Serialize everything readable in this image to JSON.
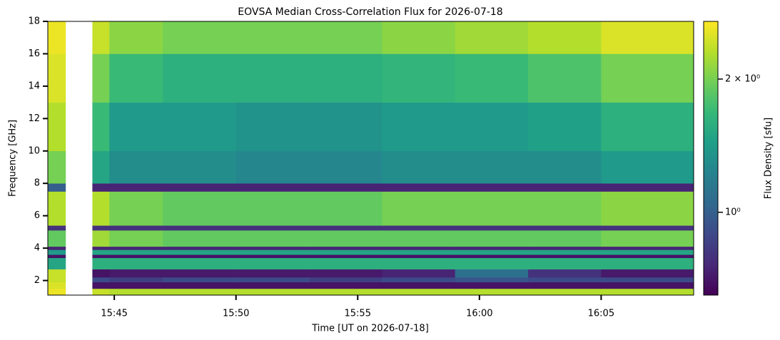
{
  "chart_data": {
    "type": "heatmap",
    "title": "EOVSA Median Cross-Correlation Flux for 2026-07-18",
    "x_label": "Time [UT on 2026-07-18]",
    "y_label": "Frequency [GHz]",
    "colorbar_label": "Flux Density [sfu]",
    "colormap": "viridis",
    "x": [
      942.27,
      943.0,
      944.1,
      944.8,
      947,
      950,
      953,
      956,
      959,
      962,
      965,
      968.8
    ],
    "y": [
      1.1,
      1.5,
      1.9,
      2.2,
      2.7,
      3.4,
      3.6,
      3.9,
      4.1,
      5.1,
      5.4,
      7.5,
      8.0,
      10.0,
      13.0,
      16.0,
      18.0
    ],
    "z": [
      [
        2.6,
        null,
        2.4,
        2.3,
        2.3,
        2.3,
        2.3,
        2.3,
        2.3,
        2.3,
        2.3
      ],
      [
        2.5,
        null,
        0.7,
        0.7,
        0.7,
        0.7,
        0.7,
        0.7,
        0.7,
        0.7,
        0.7
      ],
      [
        2.4,
        null,
        0.9,
        0.85,
        0.9,
        0.9,
        0.85,
        0.9,
        0.95,
        0.9,
        0.9
      ],
      [
        2.4,
        null,
        0.7,
        0.72,
        0.72,
        0.72,
        0.72,
        0.75,
        1.1,
        0.8,
        0.72
      ],
      [
        1.5,
        null,
        1.6,
        1.6,
        1.6,
        1.6,
        1.6,
        1.6,
        1.6,
        1.6,
        1.6
      ],
      [
        0.7,
        null,
        0.7,
        0.7,
        0.7,
        0.7,
        0.7,
        0.7,
        0.7,
        0.7,
        0.7
      ],
      [
        1.4,
        null,
        1.5,
        1.5,
        1.5,
        1.5,
        1.5,
        1.5,
        1.5,
        1.5,
        1.5
      ],
      [
        0.75,
        null,
        0.75,
        0.75,
        0.75,
        0.75,
        0.75,
        0.75,
        0.75,
        0.75,
        0.75
      ],
      [
        1.9,
        null,
        2.2,
        2.0,
        1.9,
        1.9,
        1.9,
        1.9,
        1.9,
        1.9,
        2.0
      ],
      [
        0.8,
        null,
        0.8,
        0.8,
        0.8,
        0.8,
        0.8,
        0.8,
        0.8,
        0.8,
        0.8
      ],
      [
        2.3,
        null,
        2.3,
        2.0,
        1.9,
        1.9,
        1.9,
        2.0,
        2.0,
        2.0,
        2.1
      ],
      [
        1.0,
        null,
        0.75,
        0.75,
        0.75,
        0.75,
        0.75,
        0.75,
        0.75,
        0.75,
        0.75
      ],
      [
        2.0,
        null,
        1.5,
        1.3,
        1.3,
        1.25,
        1.25,
        1.3,
        1.3,
        1.3,
        1.4
      ],
      [
        2.3,
        null,
        1.7,
        1.4,
        1.4,
        1.35,
        1.35,
        1.4,
        1.4,
        1.45,
        1.6
      ],
      [
        2.5,
        null,
        2.0,
        1.7,
        1.6,
        1.6,
        1.6,
        1.65,
        1.7,
        1.8,
        2.0
      ],
      [
        2.6,
        null,
        2.4,
        2.1,
        2.0,
        2.0,
        2.0,
        2.1,
        2.2,
        2.3,
        2.5
      ]
    ],
    "xlim": [
      942.27,
      968.8
    ],
    "xticks": [
      {
        "value": 945,
        "label": "15:45"
      },
      {
        "value": 950,
        "label": "15:50"
      },
      {
        "value": 955,
        "label": "15:55"
      },
      {
        "value": 960,
        "label": "16:00"
      },
      {
        "value": 965,
        "label": "16:05"
      }
    ],
    "ylim": [
      1.1,
      18
    ],
    "yticks": [
      2,
      4,
      6,
      8,
      10,
      12,
      14,
      16,
      18
    ],
    "clim": [
      0.65,
      2.7
    ],
    "clog": true,
    "cticks": [
      {
        "value": 1,
        "label": "10⁰"
      },
      {
        "value": 2,
        "label": "2 × 10⁰"
      }
    ]
  }
}
